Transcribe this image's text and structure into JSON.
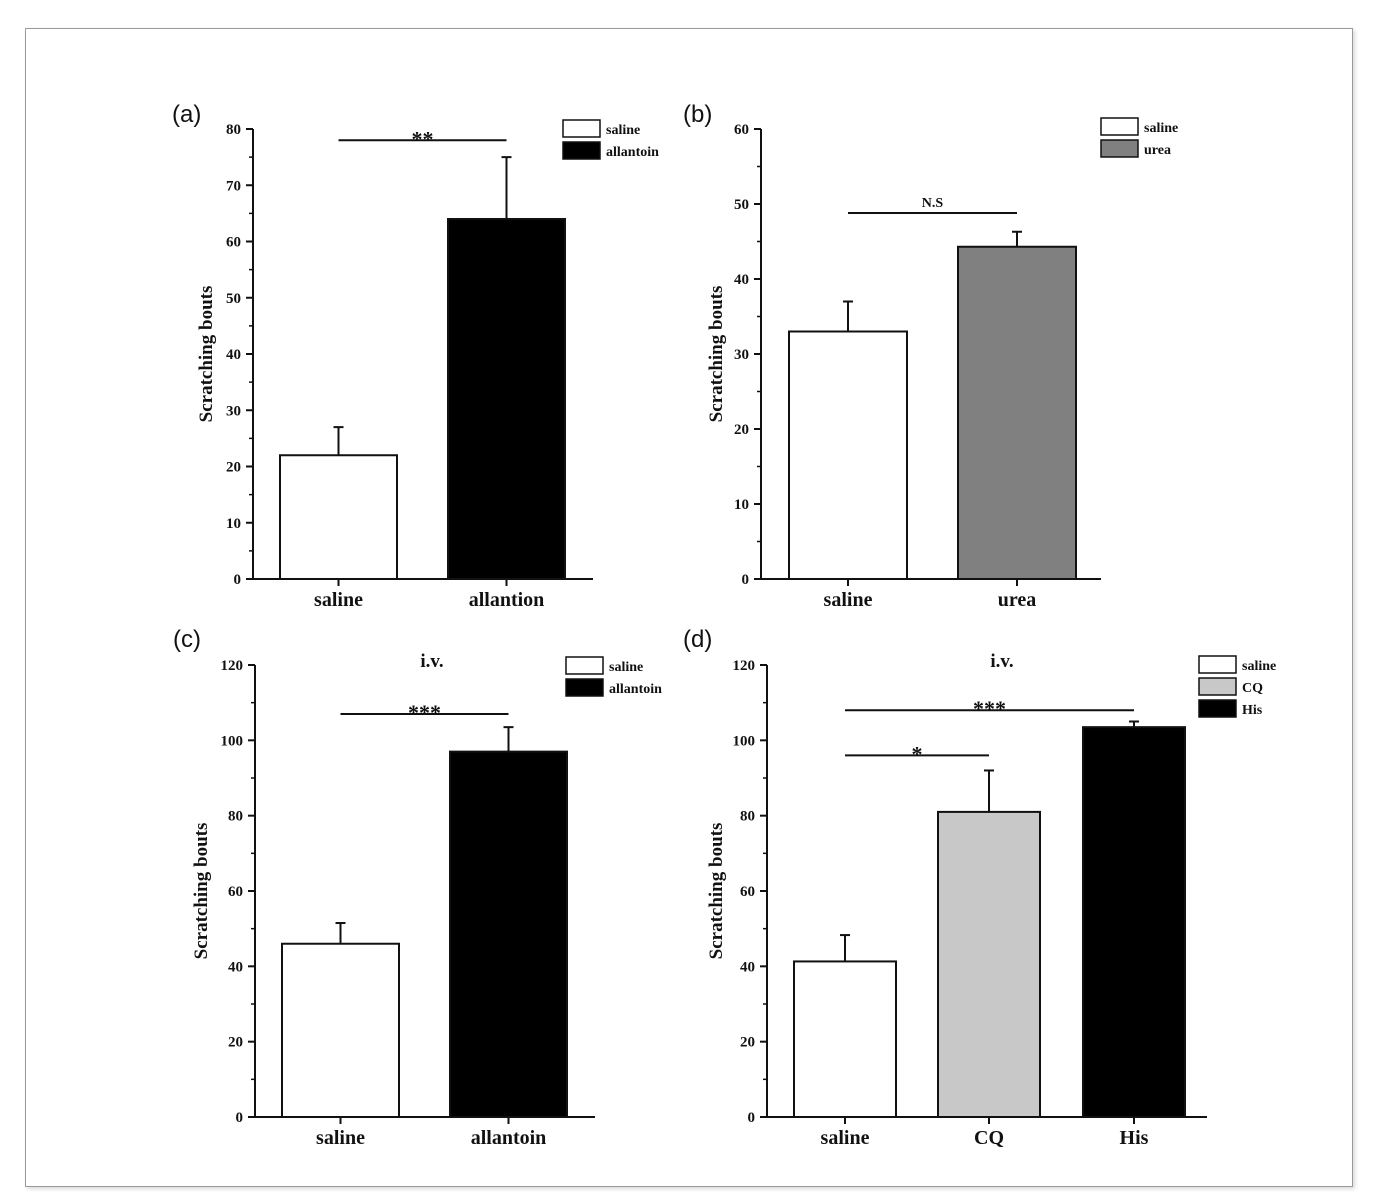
{
  "chart_data": [
    {
      "panel": "(a)",
      "type": "bar",
      "ylabel": "Scratching bouts",
      "ylim": [
        0,
        80
      ],
      "yticks": [
        0,
        10,
        20,
        30,
        40,
        50,
        60,
        70,
        80
      ],
      "categories": [
        "saline",
        "allantion"
      ],
      "values": [
        22,
        64
      ],
      "errors": [
        5,
        11
      ],
      "colors": [
        "#ffffff",
        "#000000"
      ],
      "legend": [
        {
          "label": "saline",
          "color": "#ffffff"
        },
        {
          "label": "allantoin",
          "color": "#000000"
        }
      ],
      "legend_position": "top-right",
      "significance": [
        {
          "from": 0,
          "to": 1,
          "label": "**",
          "y": 78
        }
      ]
    },
    {
      "panel": "(b)",
      "type": "bar",
      "ylabel": "Scratching bouts",
      "ylim": [
        0,
        60
      ],
      "yticks": [
        0,
        10,
        20,
        30,
        40,
        50,
        60
      ],
      "categories": [
        "saline",
        "urea"
      ],
      "values": [
        33,
        44.3
      ],
      "errors": [
        4,
        2
      ],
      "colors": [
        "#ffffff",
        "#808080"
      ],
      "legend": [
        {
          "label": "saline",
          "color": "#ffffff"
        },
        {
          "label": "urea",
          "color": "#808080"
        }
      ],
      "legend_position": "top-right",
      "significance": [
        {
          "from": 0,
          "to": 1,
          "label": "N.S",
          "y": 48.8
        }
      ]
    },
    {
      "panel": "(c)",
      "type": "bar",
      "annotation": "i.v.",
      "ylabel": "Scratching bouts",
      "ylim": [
        0,
        120
      ],
      "yticks": [
        0,
        20,
        40,
        60,
        80,
        100,
        120
      ],
      "categories": [
        "saline",
        "allantoin"
      ],
      "values": [
        46,
        97
      ],
      "errors": [
        5.5,
        6.5
      ],
      "colors": [
        "#ffffff",
        "#000000"
      ],
      "legend": [
        {
          "label": "saline",
          "color": "#ffffff"
        },
        {
          "label": "allantoin",
          "color": "#000000"
        }
      ],
      "legend_position": "top-right",
      "significance": [
        {
          "from": 0,
          "to": 1,
          "label": "***",
          "y": 107
        }
      ]
    },
    {
      "panel": "(d)",
      "type": "bar",
      "annotation": "i.v.",
      "ylabel": "Scratching bouts",
      "ylim": [
        0,
        120
      ],
      "yticks": [
        0,
        20,
        40,
        60,
        80,
        100,
        120
      ],
      "categories": [
        "saline",
        "CQ",
        "His"
      ],
      "values": [
        41.3,
        81,
        103.5
      ],
      "errors": [
        7,
        11,
        1.5
      ],
      "colors": [
        "#ffffff",
        "#c8c8c8",
        "#000000"
      ],
      "legend": [
        {
          "label": "saline",
          "color": "#ffffff"
        },
        {
          "label": "CQ",
          "color": "#c8c8c8"
        },
        {
          "label": "His",
          "color": "#000000"
        }
      ],
      "legend_position": "top-right",
      "significance": [
        {
          "from": 0,
          "to": 2,
          "label": "***",
          "y": 108
        },
        {
          "from": 0,
          "to": 1,
          "label": "*",
          "y": 96
        }
      ]
    }
  ]
}
